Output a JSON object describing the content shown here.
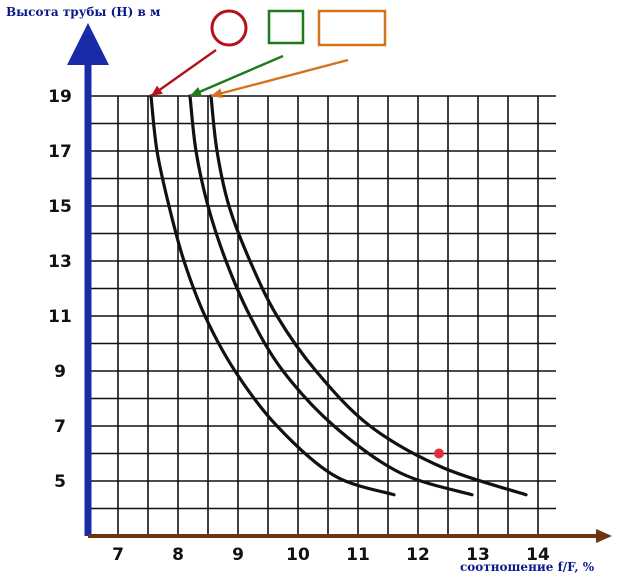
{
  "chart_data": {
    "type": "line",
    "ylabel": "Высота трубы (Н) в м",
    "xlabel": "соотношение f/F, %",
    "xlim": [
      6.5,
      14.3
    ],
    "ylim": [
      3.0,
      19.0
    ],
    "x_ticks": [
      7,
      8,
      9,
      10,
      11,
      12,
      13,
      14
    ],
    "y_ticks": [
      5,
      7,
      9,
      11,
      13,
      15,
      17,
      19
    ],
    "grid": true,
    "legend": "top, shapes above chart with arrows to curve ends",
    "series": [
      {
        "marker": "circle",
        "color": "#b3121b",
        "points": [
          [
            7.55,
            19
          ],
          [
            7.65,
            17
          ],
          [
            7.85,
            15
          ],
          [
            8.1,
            13
          ],
          [
            8.45,
            11
          ],
          [
            8.95,
            9
          ],
          [
            9.65,
            7
          ],
          [
            10.6,
            5.2
          ],
          [
            11.6,
            4.5
          ]
        ]
      },
      {
        "marker": "square",
        "color": "#1c7a1c",
        "points": [
          [
            8.2,
            19
          ],
          [
            8.3,
            17
          ],
          [
            8.5,
            15
          ],
          [
            8.8,
            13
          ],
          [
            9.2,
            11
          ],
          [
            9.75,
            9
          ],
          [
            10.6,
            7
          ],
          [
            11.7,
            5.3
          ],
          [
            12.9,
            4.5
          ]
        ]
      },
      {
        "marker": "rectangle",
        "color": "#d7721c",
        "points": [
          [
            8.55,
            19
          ],
          [
            8.65,
            17
          ],
          [
            8.85,
            15
          ],
          [
            9.2,
            13
          ],
          [
            9.65,
            11
          ],
          [
            10.3,
            9
          ],
          [
            11.2,
            7
          ],
          [
            12.4,
            5.5
          ],
          [
            13.8,
            4.5
          ]
        ]
      }
    ],
    "annotations": [
      {
        "type": "point",
        "x": 12.35,
        "y": 6.0,
        "color": "#e0313a"
      }
    ]
  }
}
